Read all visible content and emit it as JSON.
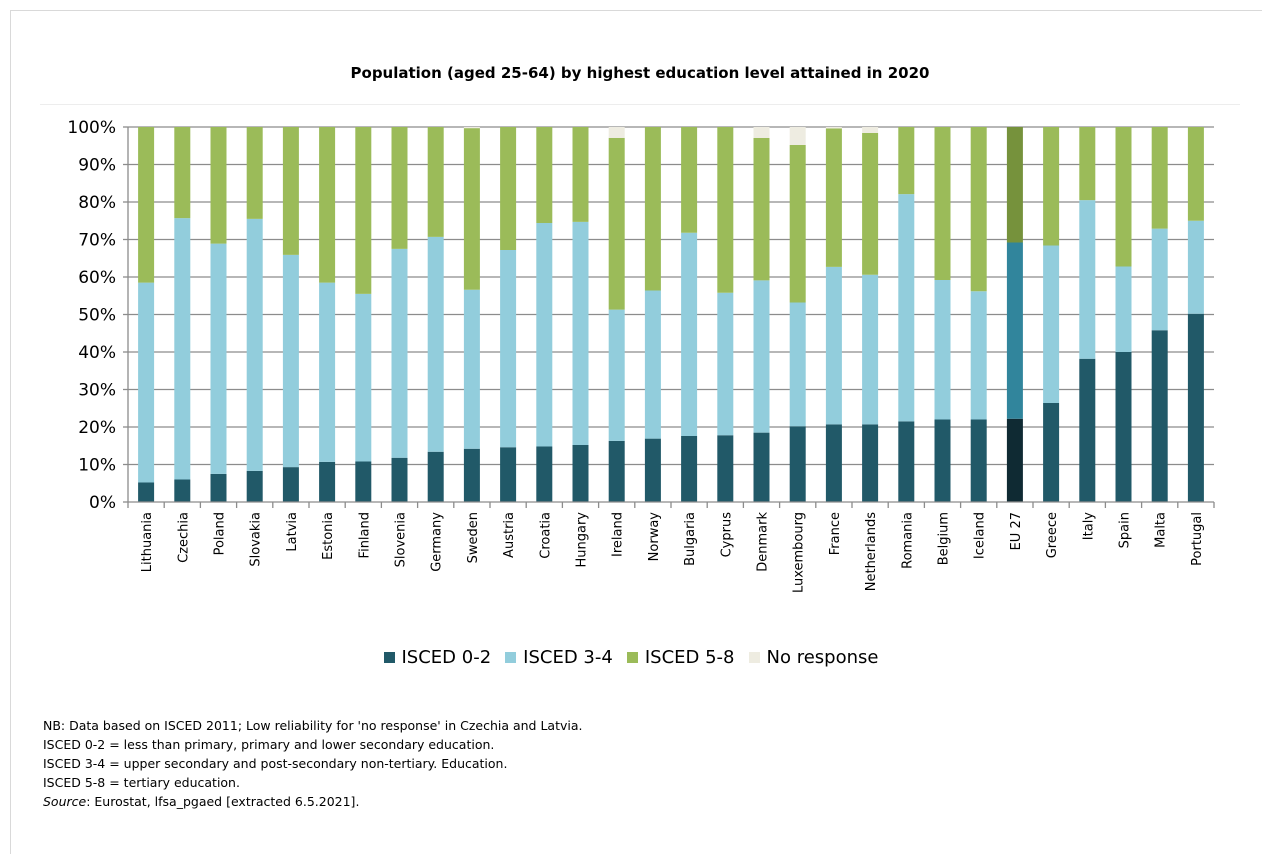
{
  "chart_data": {
    "type": "bar",
    "stacked": true,
    "title": "Population (aged 25-64) by highest education level attained in 2020",
    "xlabel": "",
    "ylabel": "",
    "ylim": [
      0,
      100
    ],
    "y_ticks": [
      "0%",
      "10%",
      "20%",
      "30%",
      "40%",
      "50%",
      "60%",
      "70%",
      "80%",
      "90%",
      "100%"
    ],
    "grid": true,
    "legend_position": "bottom",
    "categories": [
      "Lithuania",
      "Czechia",
      "Poland",
      "Slovakia",
      "Latvia",
      "Estonia",
      "Finland",
      "Slovenia",
      "Germany",
      "Sweden",
      "Austria",
      "Croatia",
      "Hungary",
      "Ireland",
      "Norway",
      "Bulgaria",
      "Cyprus",
      "Denmark",
      "Luxembourg",
      "France",
      "Netherlands",
      "Romania",
      "Belgium",
      "Iceland",
      "EU 27",
      "Greece",
      "Italy",
      "Spain",
      "Malta",
      "Portugal"
    ],
    "highlight_category": "EU 27",
    "series": [
      {
        "name": "ISCED 0-2",
        "color": "#215968",
        "highlight_color": "#0f2a33",
        "values": [
          5.2,
          6.0,
          7.5,
          8.3,
          9.3,
          10.7,
          10.8,
          11.8,
          13.4,
          14.2,
          14.6,
          14.8,
          15.2,
          16.3,
          16.9,
          17.6,
          17.8,
          18.5,
          20.2,
          20.7,
          20.7,
          21.5,
          22.0,
          22.0,
          22.2,
          26.4,
          38.2,
          40.0,
          45.8,
          50.2
        ]
      },
      {
        "name": "ISCED 3-4",
        "color": "#92cddc",
        "highlight_color": "#31859c",
        "values": [
          53.3,
          69.7,
          61.4,
          67.2,
          56.6,
          47.8,
          44.7,
          55.7,
          57.3,
          42.4,
          52.6,
          59.6,
          59.5,
          35.0,
          39.5,
          54.2,
          38.0,
          40.6,
          33.0,
          42.0,
          39.9,
          60.6,
          37.2,
          34.2,
          47.0,
          42.0,
          42.3,
          22.8,
          27.1,
          24.8
        ]
      },
      {
        "name": "ISCED 5-8",
        "color": "#9bbb59",
        "highlight_color": "#76923c",
        "values": [
          41.5,
          24.3,
          31.1,
          24.5,
          34.1,
          41.5,
          44.5,
          32.5,
          29.3,
          43.1,
          32.8,
          25.6,
          25.3,
          45.8,
          43.6,
          28.2,
          44.2,
          38.0,
          42.0,
          36.9,
          37.8,
          17.9,
          40.8,
          43.8,
          30.8,
          31.6,
          19.5,
          37.2,
          27.1,
          25.0
        ]
      },
      {
        "name": "No response",
        "color": "#eeece1",
        "highlight_color": "#eeece1",
        "values": [
          0,
          0,
          0,
          0,
          0,
          0,
          0,
          0,
          0,
          0.3,
          0,
          0,
          0,
          2.9,
          0,
          0,
          0,
          2.9,
          4.8,
          0.4,
          1.6,
          0,
          0,
          0,
          0,
          0,
          0,
          0,
          0,
          0
        ]
      }
    ]
  },
  "notes": {
    "line1": "NB: Data based on ISCED 2011; Low reliability for 'no response' in Czechia and Latvia.",
    "line2": "ISCED 0-2 = less than primary, primary and lower secondary education.",
    "line3": "ISCED 3-4 = upper secondary and post-secondary non-tertiary. Education.",
    "line4": "ISCED 5-8 = tertiary education.",
    "source_label": "Source",
    "source_text": ": Eurostat, lfsa_pgaed [extracted 6.5.2021]."
  }
}
